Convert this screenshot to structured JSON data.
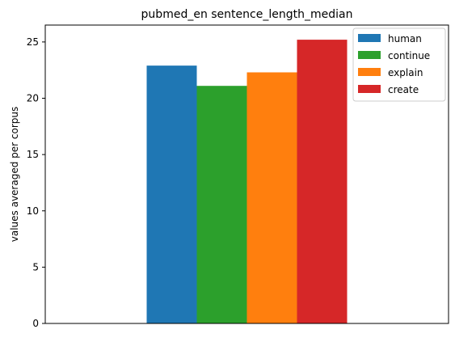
{
  "chart_data": {
    "type": "bar",
    "title": "pubmed_en sentence_length_median",
    "xlabel": "",
    "ylabel": "values averaged per corpus",
    "categories": [
      ""
    ],
    "series": [
      {
        "name": "human",
        "values": [
          22.9
        ],
        "color": "#1f77b4"
      },
      {
        "name": "continue",
        "values": [
          21.1
        ],
        "color": "#2ca02c"
      },
      {
        "name": "explain",
        "values": [
          22.3
        ],
        "color": "#ff7f0e"
      },
      {
        "name": "create",
        "values": [
          25.2
        ],
        "color": "#d62728"
      }
    ],
    "ylim": [
      0,
      26.5
    ],
    "yticks": [
      0,
      5,
      10,
      15,
      20,
      25
    ],
    "grid": false,
    "legend_position": "top-right"
  }
}
